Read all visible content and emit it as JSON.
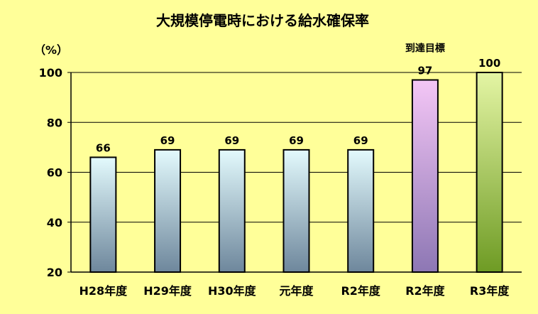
{
  "chart_data": {
    "type": "bar",
    "title": "大規模停電時における給水確保率",
    "unit_label": "（%）",
    "categories": [
      "H28年度",
      "H29年度",
      "H30年度",
      "元年度",
      "R2年度",
      "R2年度",
      "R3年度"
    ],
    "values": [
      66,
      69,
      69,
      69,
      69,
      97,
      100
    ],
    "annotations": [
      {
        "category_index": 5,
        "text": "到達目標"
      }
    ],
    "yticks": [
      20,
      40,
      60,
      80,
      100
    ],
    "ylim": [
      20,
      100
    ],
    "grid": true,
    "legend": "none",
    "colors": {
      "background": "#FFFF99",
      "bar_default_top": "#E3FAFD",
      "bar_default_bottom": "#6E879C",
      "bar_target_top": "#F4C6F6",
      "bar_target_bottom": "#8D77B4",
      "bar_r3_top": "#E4F5A4",
      "bar_r3_bottom": "#6E9B24",
      "grid": "#000000"
    }
  }
}
